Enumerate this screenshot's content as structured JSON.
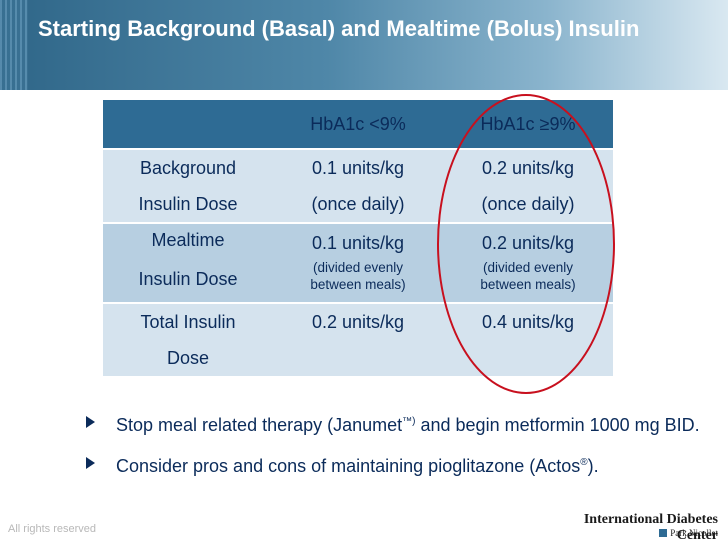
{
  "slide": {
    "title": "Starting Background (Basal) and Mealtime (Bolus) Insulin"
  },
  "table": {
    "headers": [
      "",
      "HbA1c <9%",
      "HbA1c ≥9%"
    ],
    "rows": [
      {
        "label": [
          "Background",
          "Insulin Dose"
        ],
        "lt9": [
          "0.1 units/kg",
          "(once daily)"
        ],
        "ge9": [
          "0.2 units/kg",
          "(once daily)"
        ]
      },
      {
        "label": [
          "Mealtime",
          "Insulin Dose"
        ],
        "lt9": [
          "0.1 units/kg",
          "(divided evenly",
          "between meals)"
        ],
        "ge9": [
          "0.2 units/kg",
          "(divided evenly",
          "between meals)"
        ]
      },
      {
        "label": [
          "Total Insulin",
          "Dose"
        ],
        "lt9": [
          "0.2 units/kg"
        ],
        "ge9": [
          "0.4 units/kg"
        ]
      }
    ]
  },
  "bullets": [
    {
      "before": "Stop meal related therapy (Janumet",
      "sup": "™)",
      "after": " and begin metformin 1000 mg BID."
    },
    {
      "before": "Consider pros and cons of maintaining pioglitazone (Actos",
      "sup": "®",
      "after": ")."
    }
  ],
  "footer": {
    "rights": "All rights reserved",
    "org": "International Diabetes Center",
    "sub": "Park Nicollet"
  },
  "colors": {
    "header": "#2f6688",
    "table_header": "#2e6b94",
    "row_light": "#d5e3ee",
    "row_dark": "#b7cfe1",
    "text": "#0b2b5a",
    "highlight_ring": "#c8101e"
  }
}
